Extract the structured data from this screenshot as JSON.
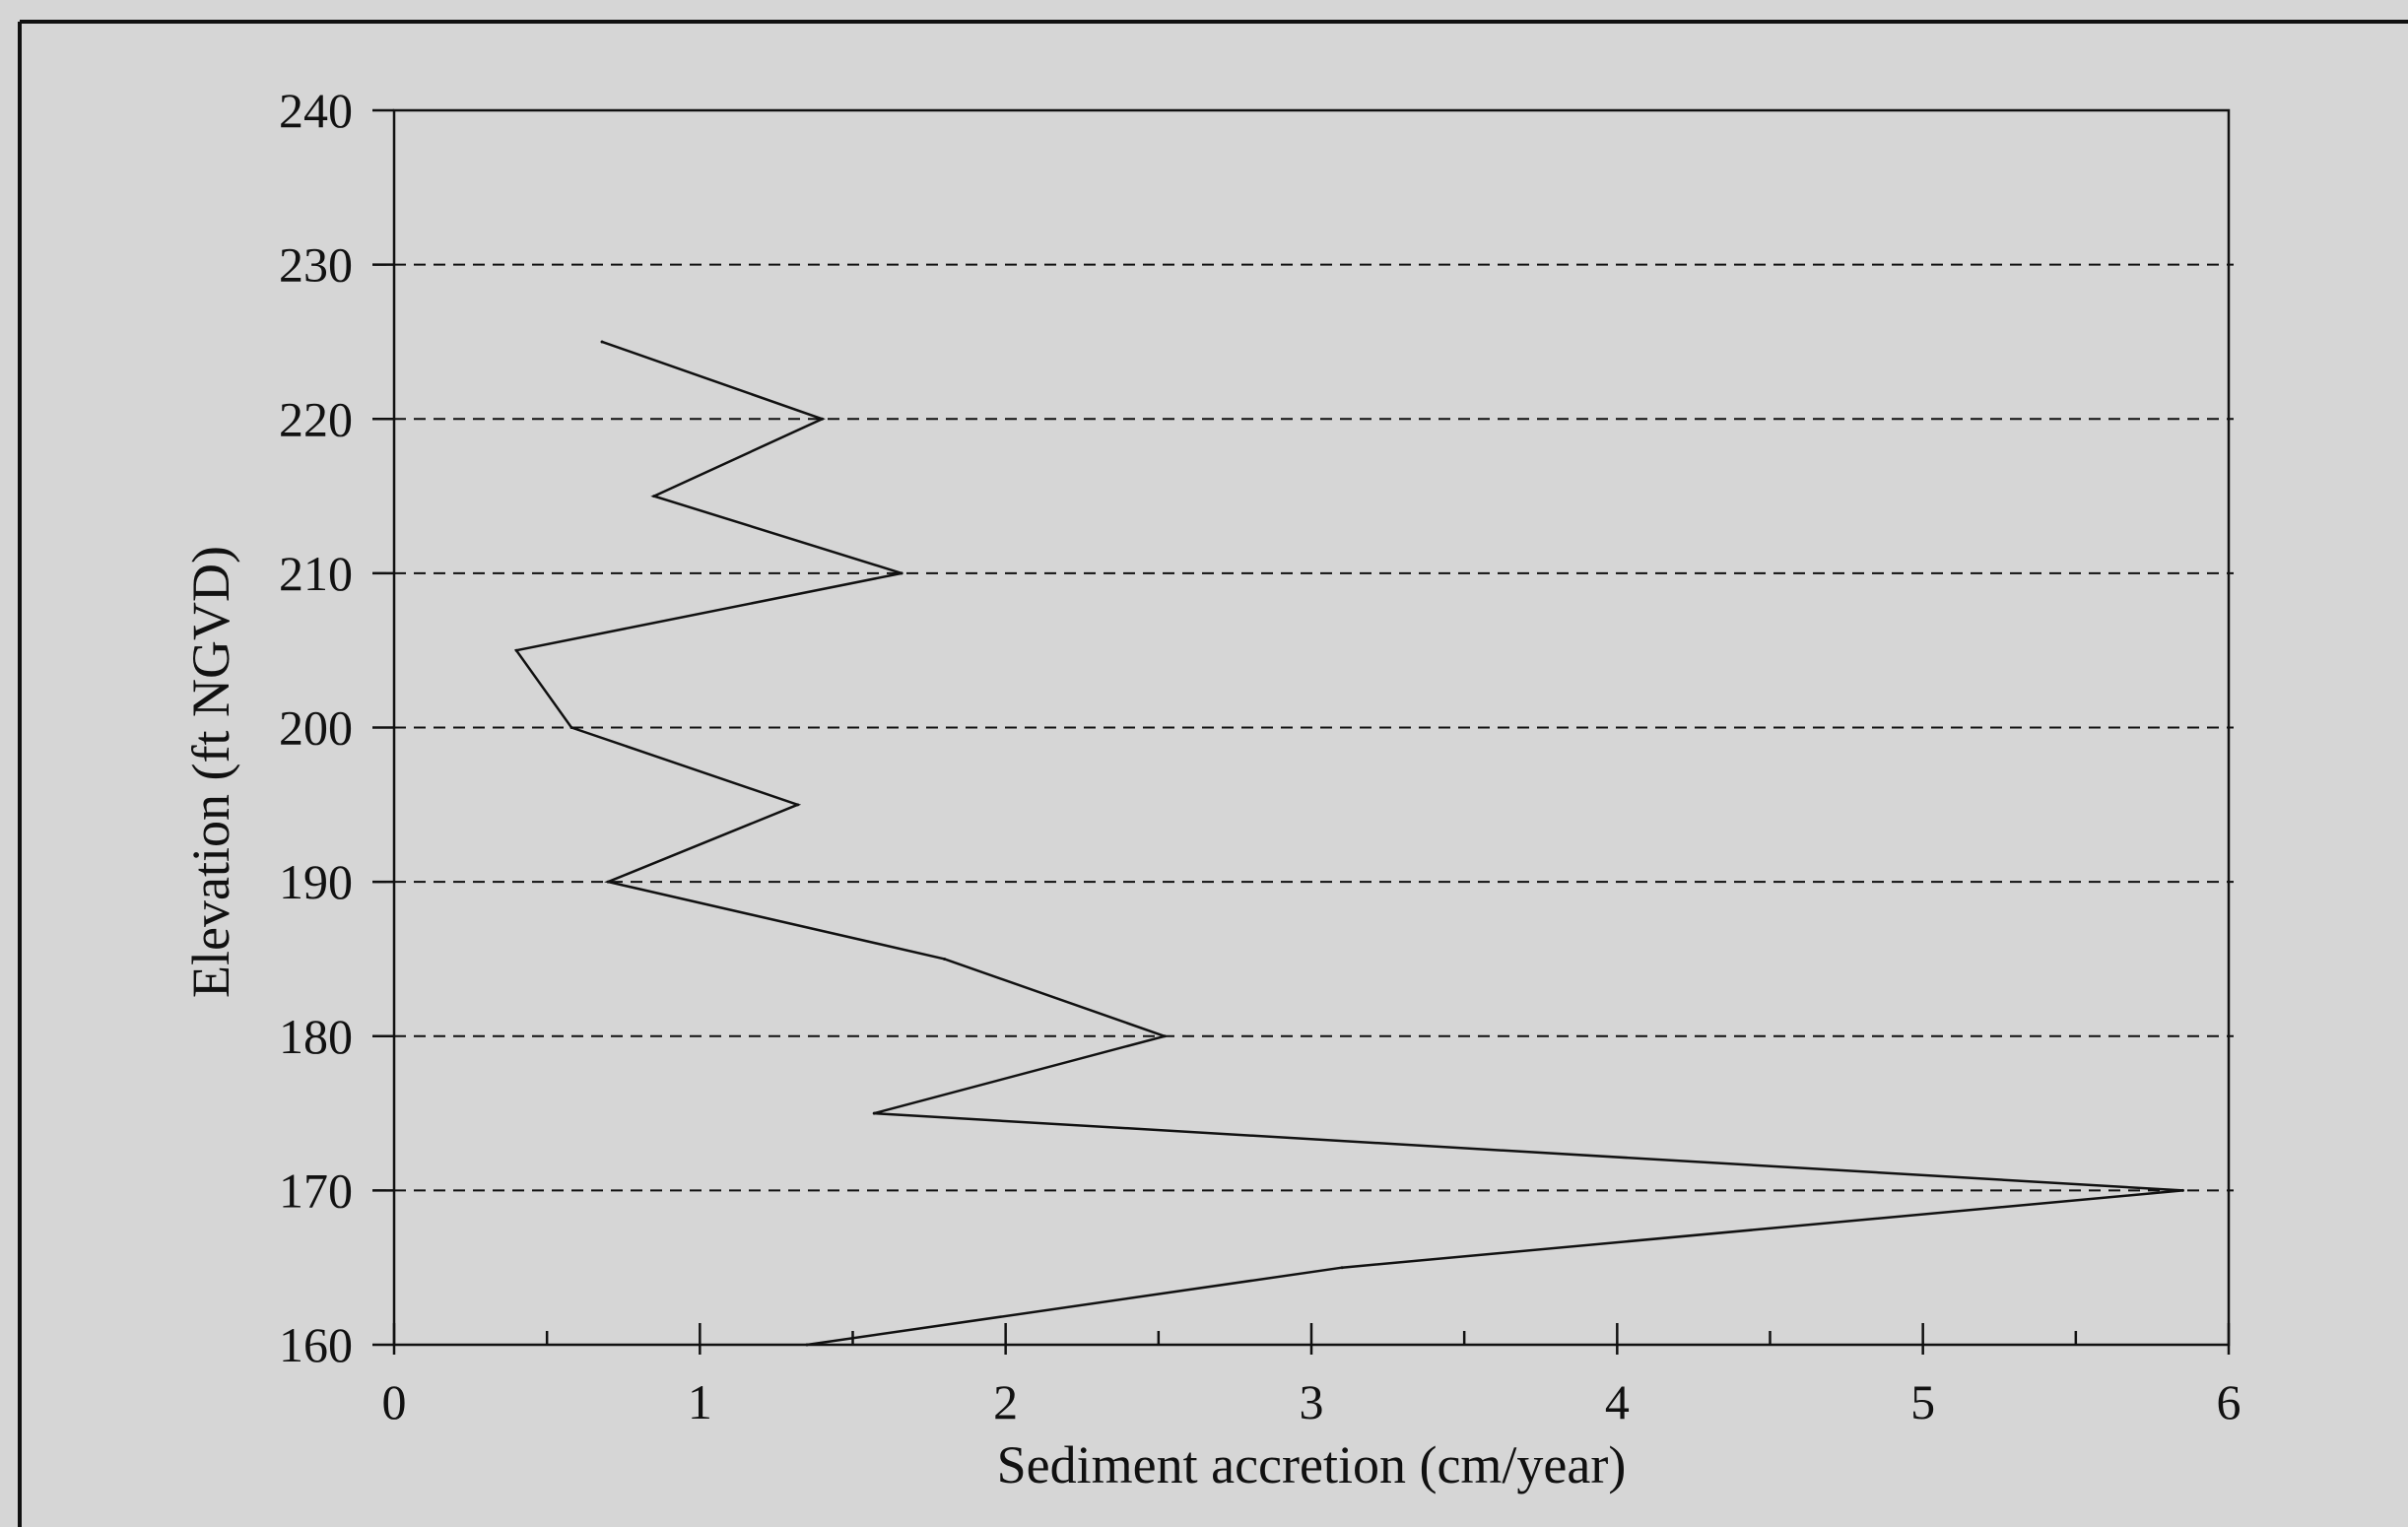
{
  "colors": {
    "background": "#d6d6d6",
    "ink": "#111111"
  },
  "chart_data": {
    "type": "line",
    "orientation": "vertical-profile",
    "title": "",
    "xlabel": "Sediment accretion (cm/year)",
    "ylabel": "Elevation (ft NGVD)",
    "xlim": [
      0,
      6
    ],
    "ylim": [
      160,
      240
    ],
    "x_ticks": [
      0,
      1,
      2,
      3,
      4,
      5,
      6
    ],
    "x_minor_ticks": [
      0.5,
      1.5,
      2.5,
      3.5,
      4.5,
      5.5
    ],
    "y_ticks": [
      160,
      170,
      180,
      190,
      200,
      210,
      220,
      230,
      240
    ],
    "grid": "dashed horizontal lines at y ticks",
    "series": [
      {
        "points": [
          {
            "x": 0.68,
            "y": 225
          },
          {
            "x": 1.4,
            "y": 220
          },
          {
            "x": 0.85,
            "y": 215
          },
          {
            "x": 1.66,
            "y": 210
          },
          {
            "x": 0.4,
            "y": 205
          },
          {
            "x": 0.58,
            "y": 200
          },
          {
            "x": 1.32,
            "y": 195
          },
          {
            "x": 0.7,
            "y": 190
          },
          {
            "x": 1.8,
            "y": 185
          },
          {
            "x": 2.52,
            "y": 180
          },
          {
            "x": 1.57,
            "y": 175
          },
          {
            "x": 5.85,
            "y": 170
          },
          {
            "x": 3.1,
            "y": 165
          },
          {
            "x": 1.35,
            "y": 160
          }
        ]
      }
    ]
  }
}
